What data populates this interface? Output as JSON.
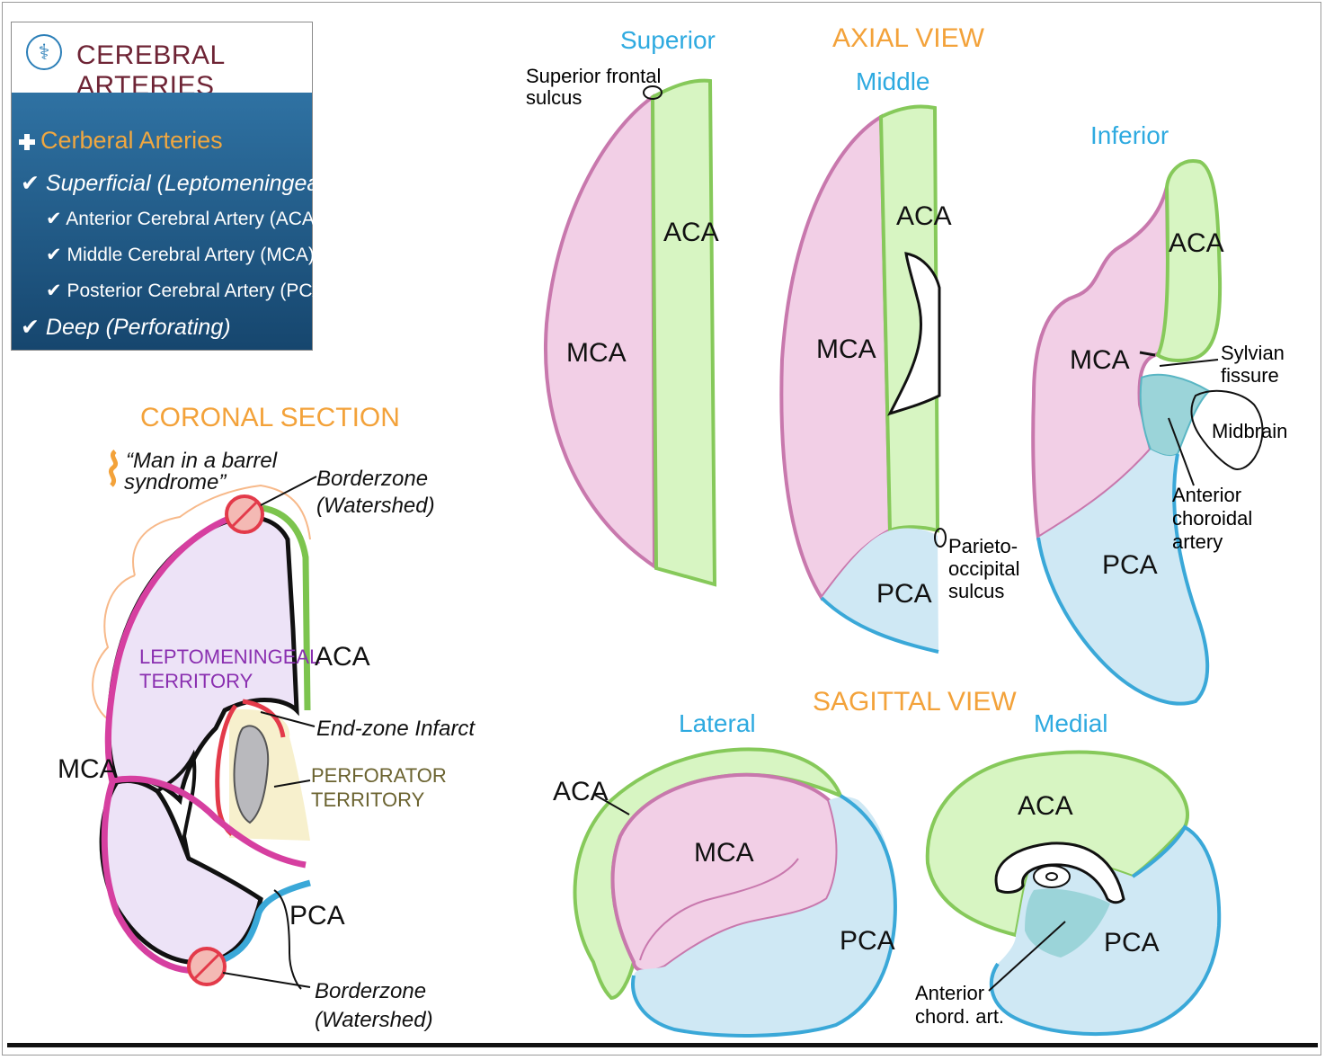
{
  "menu": {
    "title": "CEREBRAL ARTERIES",
    "logo_icon": "caduceus-icon",
    "items": [
      {
        "label": "Cerberal Arteries",
        "icon": "plus-icon",
        "level": 0
      },
      {
        "label": "Superficial (Leptomeningeal)",
        "icon": "check-icon",
        "level": 0
      },
      {
        "label": "Anterior Cerebral Artery (ACA)",
        "icon": "check-icon",
        "level": 1
      },
      {
        "label": "Middle Cerebral Artery (MCA)",
        "icon": "check-icon",
        "level": 1
      },
      {
        "label": "Posterior Cerebral Artery (PCA)",
        "icon": "check-icon",
        "level": 1
      },
      {
        "label": "Deep (Perforating)",
        "icon": "check-icon",
        "level": 0
      }
    ]
  },
  "colors": {
    "aca": "#d7f5c2",
    "aca_border": "#86c95a",
    "mca": "#f2cfe6",
    "mca_border": "#c878ad",
    "pca": "#cfe8f4",
    "pca_border": "#3aa8d8",
    "choroidal": "#9bd4d9",
    "heading_orange": "#f3a23a",
    "heading_blue": "#2eaae0",
    "panel_blue": "#1f5d8c",
    "title_maroon": "#6e2435"
  },
  "coronal": {
    "heading": "CORONAL SECTION",
    "note": "“Man in a barrel syndrome”",
    "borderzone_top": [
      "Borderzone",
      "(Watershed)"
    ],
    "borderzone_bottom": [
      "Borderzone",
      "(Watershed)"
    ],
    "leptomeningeal": [
      "LEPTOMENINGEAL",
      "TERRITORY"
    ],
    "perforator": [
      "PERFORATOR",
      "TERRITORY"
    ],
    "end_zone": "End-zone Infarct",
    "aca": "ACA",
    "mca": "MCA",
    "pca": "PCA"
  },
  "axial": {
    "heading": "AXIAL VIEW",
    "superior": {
      "title": "Superior",
      "aca": "ACA",
      "mca": "MCA",
      "sulcus": [
        "Superior frontal",
        "sulcus"
      ]
    },
    "middle": {
      "title": "Middle",
      "aca": "ACA",
      "mca": "MCA",
      "pca": "PCA",
      "sulcus": [
        "Parieto-",
        "occipital",
        "sulcus"
      ]
    },
    "inferior": {
      "title": "Inferior",
      "aca": "ACA",
      "mca": "MCA",
      "pca": "PCA",
      "sylvian": [
        "Sylvian",
        "fissure"
      ],
      "midbrain": "Midbrain",
      "choroidal": [
        "Anterior",
        "choroidal",
        "artery"
      ]
    }
  },
  "sagittal": {
    "heading": "SAGITTAL VIEW",
    "lateral": {
      "title": "Lateral",
      "aca": "ACA",
      "mca": "MCA",
      "pca": "PCA"
    },
    "medial": {
      "title": "Medial",
      "aca": "ACA",
      "pca": "PCA",
      "choroidal": [
        "Anterior",
        "chord. art."
      ]
    }
  }
}
